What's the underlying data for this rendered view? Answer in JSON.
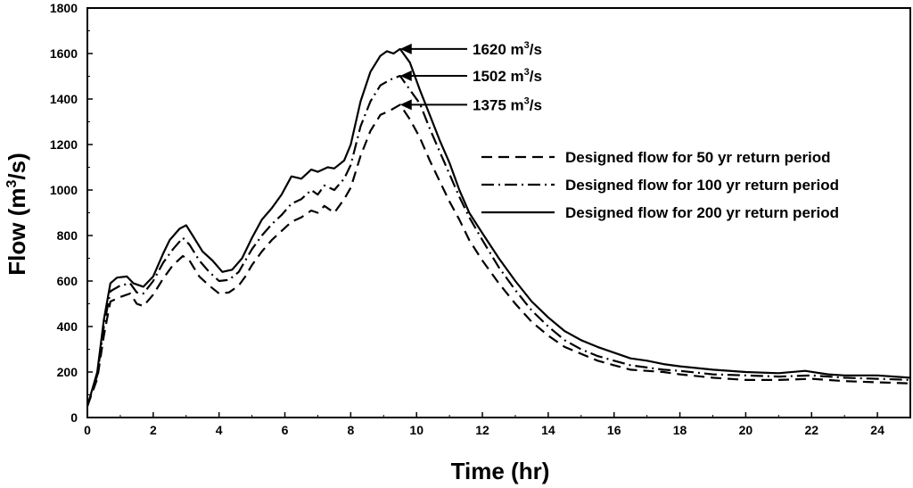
{
  "chart_data": {
    "type": "line",
    "title": "",
    "xlabel": "Time (hr)",
    "ylabel_main": "Flow (m",
    "ylabel_sup": "3",
    "ylabel_tail": "/s)",
    "xlim": [
      0,
      25
    ],
    "ylim": [
      0,
      1800
    ],
    "xticks": [
      0,
      2,
      4,
      6,
      8,
      10,
      12,
      14,
      16,
      18,
      20,
      22,
      24
    ],
    "yticks": [
      0,
      200,
      400,
      600,
      800,
      1000,
      1200,
      1400,
      1600,
      1800
    ],
    "grid": false,
    "legend_position": "right",
    "series": [
      {
        "name": "Designed flow for 50 yr return period",
        "style": "dashed",
        "x": [
          0,
          0.3,
          0.5,
          0.7,
          1.0,
          1.3,
          1.5,
          1.7,
          2.0,
          2.3,
          2.6,
          2.9,
          3.1,
          3.4,
          3.7,
          4.0,
          4.3,
          4.6,
          4.8,
          5.0,
          5.3,
          5.6,
          5.9,
          6.2,
          6.5,
          6.8,
          7.0,
          7.2,
          7.5,
          7.8,
          8.0,
          8.3,
          8.6,
          8.9,
          9.2,
          9.5,
          9.8,
          10.1,
          10.4,
          10.7,
          11.0,
          11.3,
          11.6,
          12.0,
          12.5,
          13.0,
          13.5,
          14.0,
          14.5,
          15.0,
          15.5,
          16.0,
          16.5,
          17.0,
          17.5,
          18.0,
          19.0,
          20.0,
          21.0,
          22.0,
          23.0,
          24.0,
          25.0
        ],
        "values": [
          50,
          170,
          360,
          510,
          530,
          545,
          500,
          490,
          540,
          610,
          670,
          710,
          690,
          620,
          580,
          545,
          550,
          580,
          620,
          670,
          730,
          780,
          820,
          860,
          880,
          910,
          900,
          930,
          900,
          960,
          1010,
          1150,
          1260,
          1330,
          1350,
          1375,
          1310,
          1230,
          1130,
          1040,
          950,
          870,
          780,
          690,
          590,
          500,
          420,
          360,
          310,
          280,
          250,
          230,
          210,
          205,
          200,
          190,
          175,
          165,
          165,
          170,
          160,
          155,
          150
        ]
      },
      {
        "name": "Designed flow for 100 yr return period",
        "style": "dash-dot",
        "x": [
          0,
          0.3,
          0.5,
          0.7,
          1.0,
          1.3,
          1.5,
          1.7,
          2.0,
          2.3,
          2.6,
          2.9,
          3.1,
          3.4,
          3.7,
          4.0,
          4.3,
          4.6,
          4.8,
          5.0,
          5.3,
          5.6,
          5.9,
          6.2,
          6.5,
          6.8,
          7.0,
          7.2,
          7.5,
          7.8,
          8.0,
          8.3,
          8.6,
          8.9,
          9.2,
          9.5,
          9.8,
          10.1,
          10.4,
          10.7,
          11.0,
          11.3,
          11.6,
          12.0,
          12.5,
          13.0,
          13.5,
          14.0,
          14.5,
          15.0,
          15.5,
          16.0,
          16.5,
          17.0,
          17.5,
          18.0,
          19.0,
          20.0,
          21.0,
          22.0,
          23.0,
          24.0,
          25.0
        ],
        "values": [
          50,
          185,
          400,
          555,
          580,
          590,
          550,
          545,
          600,
          680,
          740,
          790,
          760,
          690,
          640,
          600,
          605,
          640,
          690,
          740,
          800,
          850,
          890,
          940,
          960,
          1000,
          980,
          1020,
          1000,
          1050,
          1110,
          1280,
          1390,
          1460,
          1485,
          1502,
          1440,
          1380,
          1270,
          1170,
          1070,
          970,
          880,
          780,
          660,
          560,
          470,
          400,
          340,
          300,
          270,
          250,
          230,
          220,
          210,
          205,
          190,
          185,
          180,
          185,
          175,
          170,
          165
        ]
      },
      {
        "name": "Designed flow for 200 yr return period",
        "style": "solid",
        "x": [
          0,
          0.3,
          0.5,
          0.7,
          0.9,
          1.2,
          1.4,
          1.7,
          2.0,
          2.3,
          2.5,
          2.8,
          3.0,
          3.2,
          3.5,
          3.8,
          4.1,
          4.4,
          4.7,
          5.0,
          5.3,
          5.6,
          5.9,
          6.2,
          6.5,
          6.8,
          7.0,
          7.3,
          7.5,
          7.8,
          8.0,
          8.3,
          8.6,
          8.9,
          9.1,
          9.3,
          9.5,
          9.8,
          10.1,
          10.4,
          10.7,
          11.0,
          11.3,
          11.6,
          12.0,
          12.5,
          13.0,
          13.5,
          14.0,
          14.5,
          15.0,
          15.5,
          16.0,
          16.5,
          17.0,
          17.5,
          18.0,
          19.0,
          20.0,
          21.0,
          21.8,
          22.5,
          23.0,
          24.0,
          24.5,
          25.0
        ],
        "values": [
          50,
          200,
          430,
          590,
          615,
          620,
          590,
          575,
          620,
          720,
          780,
          830,
          845,
          800,
          730,
          690,
          640,
          650,
          700,
          790,
          870,
          920,
          980,
          1060,
          1050,
          1090,
          1080,
          1100,
          1095,
          1130,
          1200,
          1390,
          1520,
          1590,
          1610,
          1600,
          1620,
          1560,
          1440,
          1330,
          1220,
          1120,
          1000,
          900,
          810,
          700,
          600,
          510,
          440,
          380,
          340,
          310,
          285,
          260,
          250,
          235,
          225,
          210,
          200,
          195,
          205,
          190,
          185,
          185,
          180,
          175
        ]
      }
    ],
    "annotations": [
      {
        "value": "1620",
        "unit_pre": " m",
        "unit_sup": "3",
        "unit_post": "/s",
        "x": 9.5,
        "y": 1620
      },
      {
        "value": "1502",
        "unit_pre": " m",
        "unit_sup": "3",
        "unit_post": "/s",
        "x": 9.5,
        "y": 1502
      },
      {
        "value": "1375",
        "unit_pre": " m",
        "unit_sup": "3",
        "unit_post": "/s",
        "x": 9.5,
        "y": 1375
      }
    ]
  }
}
